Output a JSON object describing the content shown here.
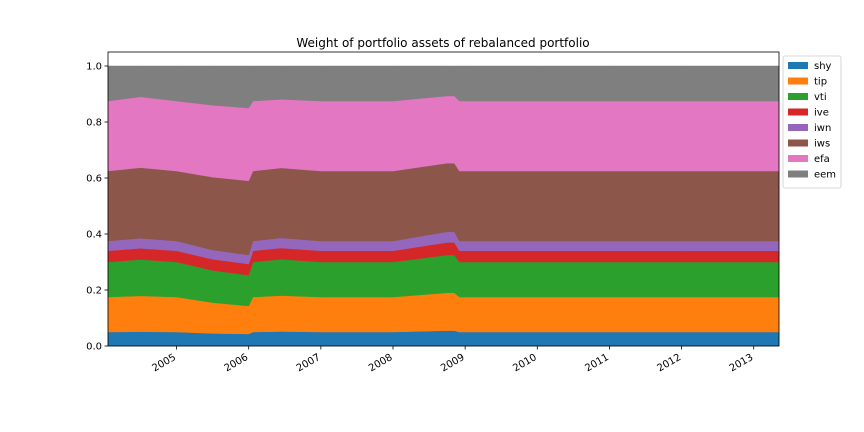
{
  "chart_data": {
    "type": "area",
    "title": "Weight of portfolio assets of rebalanced portfolio",
    "xlabel": "",
    "ylabel": "",
    "xlim": [
      2004.05,
      2013.35
    ],
    "ylim": [
      0.0,
      1.05
    ],
    "xtick_labels": [
      "2005",
      "2006",
      "2007",
      "2008",
      "2009",
      "2010",
      "2011",
      "2012",
      "2013"
    ],
    "xtick_values": [
      2005.0,
      2006.0,
      2007.0,
      2008.0,
      2009.0,
      2010.0,
      2011.0,
      2012.0,
      2013.0
    ],
    "ytick_labels": [
      "0.0",
      "0.2",
      "0.4",
      "0.6",
      "0.8",
      "1.0"
    ],
    "ytick_values": [
      0.0,
      0.2,
      0.4,
      0.6,
      0.8,
      1.0
    ],
    "grid": false,
    "legend_position": "upper-right-outside",
    "x": [
      2004.05,
      2004.5,
      2005.0,
      2005.5,
      2006.0,
      2006.06,
      2006.45,
      2007.0,
      2008.0,
      2008.75,
      2008.85,
      2008.92,
      2009.0,
      2010.0,
      2011.0,
      2012.0,
      2013.35
    ],
    "series": [
      {
        "name": "shy",
        "color": "#1f77b4",
        "values": [
          0.05,
          0.051,
          0.05,
          0.045,
          0.043,
          0.05,
          0.052,
          0.05,
          0.05,
          0.055,
          0.055,
          0.05,
          0.05,
          0.05,
          0.05,
          0.05,
          0.05
        ]
      },
      {
        "name": "tip",
        "color": "#ff7f0e",
        "values": [
          0.125,
          0.128,
          0.125,
          0.11,
          0.1,
          0.125,
          0.128,
          0.125,
          0.125,
          0.135,
          0.135,
          0.125,
          0.125,
          0.125,
          0.125,
          0.125,
          0.125
        ]
      },
      {
        "name": "vti",
        "color": "#2ca02c",
        "values": [
          0.125,
          0.13,
          0.125,
          0.115,
          0.11,
          0.125,
          0.13,
          0.125,
          0.125,
          0.135,
          0.135,
          0.125,
          0.125,
          0.125,
          0.125,
          0.125,
          0.125
        ]
      },
      {
        "name": "ive",
        "color": "#d62728",
        "values": [
          0.04,
          0.04,
          0.04,
          0.04,
          0.04,
          0.04,
          0.04,
          0.04,
          0.04,
          0.045,
          0.045,
          0.04,
          0.04,
          0.04,
          0.04,
          0.04,
          0.04
        ]
      },
      {
        "name": "iwn",
        "color": "#9467bd",
        "values": [
          0.035,
          0.036,
          0.035,
          0.033,
          0.032,
          0.035,
          0.036,
          0.035,
          0.035,
          0.038,
          0.038,
          0.035,
          0.035,
          0.035,
          0.035,
          0.035,
          0.035
        ]
      },
      {
        "name": "iws",
        "color": "#8c564b",
        "values": [
          0.25,
          0.252,
          0.25,
          0.26,
          0.265,
          0.25,
          0.25,
          0.25,
          0.25,
          0.245,
          0.245,
          0.25,
          0.25,
          0.25,
          0.25,
          0.25,
          0.25
        ]
      },
      {
        "name": "efa",
        "color": "#e377c2",
        "values": [
          0.25,
          0.253,
          0.25,
          0.257,
          0.26,
          0.25,
          0.245,
          0.25,
          0.25,
          0.24,
          0.24,
          0.25,
          0.25,
          0.25,
          0.25,
          0.25,
          0.25
        ]
      },
      {
        "name": "eem",
        "color": "#7f7f7f",
        "values": [
          0.125,
          0.11,
          0.125,
          0.14,
          0.15,
          0.125,
          0.119,
          0.125,
          0.125,
          0.107,
          0.107,
          0.125,
          0.125,
          0.125,
          0.125,
          0.125,
          0.125
        ]
      }
    ]
  }
}
